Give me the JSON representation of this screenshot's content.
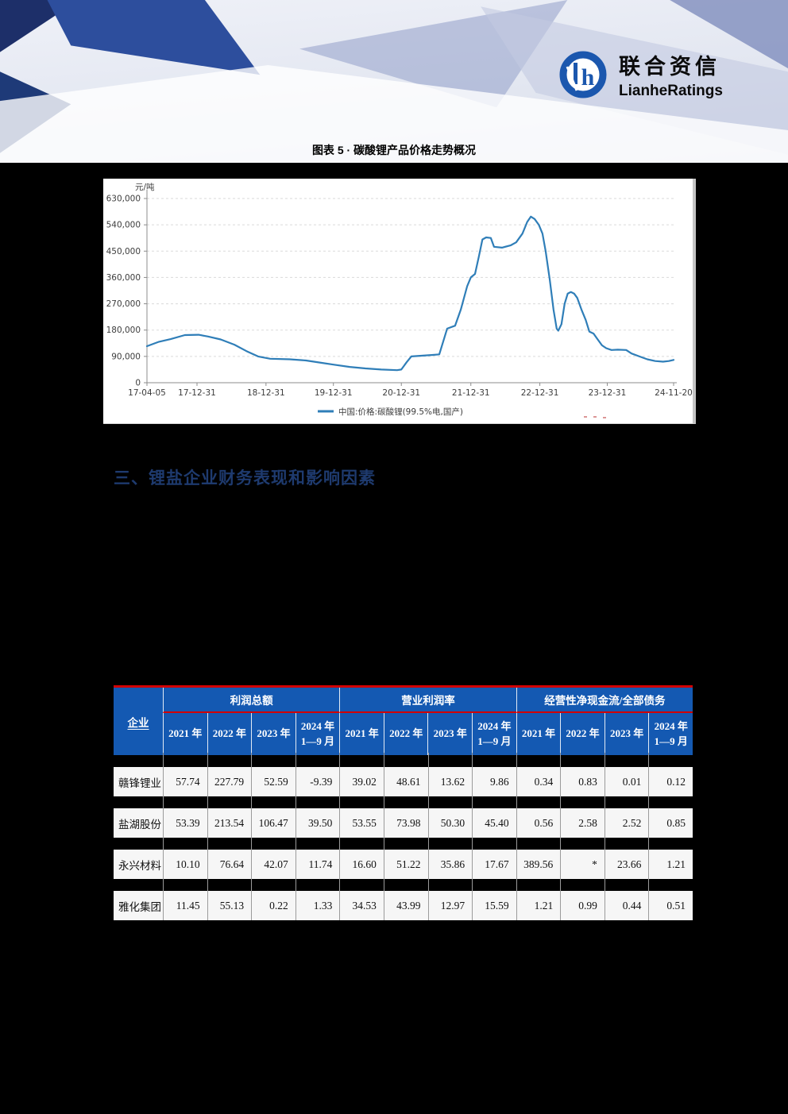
{
  "page": {
    "background": "#000000"
  },
  "header": {
    "logo_cn": "联合资信",
    "logo_en": "LianheRatings"
  },
  "figure": {
    "title": "图表 5 · 碳酸锂产品价格走势概况"
  },
  "section": {
    "heading": "三、锂盐企业财务表现和影响因素"
  },
  "chart_data": {
    "type": "line",
    "title": "图表 5 · 碳酸锂产品价格走势概况",
    "xlabel": "",
    "ylabel": "元/吨",
    "ylim": [
      0,
      630000
    ],
    "grid": "horizontal-dashed",
    "legend_position": "bottom-center",
    "yticks": [
      {
        "v": 630000,
        "label": "630,000"
      },
      {
        "v": 540000,
        "label": "540,000"
      },
      {
        "v": 450000,
        "label": "450,000"
      },
      {
        "v": 360000,
        "label": "360,000"
      },
      {
        "v": 270000,
        "label": "270,000"
      },
      {
        "v": 180000,
        "label": "180,000"
      },
      {
        "v": 90000,
        "label": "90,000"
      },
      {
        "v": 0,
        "label": "0"
      }
    ],
    "xticks": [
      {
        "label": "17-04-05",
        "pct": 0
      },
      {
        "label": "17-12-31",
        "pct": 9.5
      },
      {
        "label": "18-12-31",
        "pct": 22.6
      },
      {
        "label": "19-12-31",
        "pct": 35.4
      },
      {
        "label": "20-12-31",
        "pct": 48.3
      },
      {
        "label": "21-12-31",
        "pct": 61.5
      },
      {
        "label": "22-12-31",
        "pct": 74.6
      },
      {
        "label": "23-12-31",
        "pct": 87.4
      },
      {
        "label": "24-11-20",
        "pct": 100
      }
    ],
    "series": [
      {
        "name": "中国:价格:碳酸锂(99.5%电,国产)",
        "color": "#2f7eb8",
        "points": [
          [
            0,
            125000
          ],
          [
            2.3,
            140000
          ],
          [
            4.5,
            149000
          ],
          [
            7.2,
            163000
          ],
          [
            9.8,
            164000
          ],
          [
            11.6,
            158000
          ],
          [
            14,
            148000
          ],
          [
            16.6,
            130000
          ],
          [
            18.9,
            108000
          ],
          [
            21.1,
            90000
          ],
          [
            23.4,
            82000
          ],
          [
            27.1,
            80000
          ],
          [
            30.2,
            76000
          ],
          [
            33.2,
            68000
          ],
          [
            35.4,
            62000
          ],
          [
            38.5,
            54000
          ],
          [
            41.5,
            49000
          ],
          [
            44.5,
            45000
          ],
          [
            47.5,
            43000
          ],
          [
            48.3,
            45000
          ],
          [
            49.3,
            70000
          ],
          [
            50.2,
            90000
          ],
          [
            54.3,
            95000
          ],
          [
            55.5,
            97000
          ],
          [
            57,
            185000
          ],
          [
            58.5,
            195000
          ],
          [
            59.6,
            250000
          ],
          [
            60.8,
            330000
          ],
          [
            61.5,
            360000
          ],
          [
            62.3,
            372000
          ],
          [
            63,
            430000
          ],
          [
            63.7,
            490000
          ],
          [
            64.4,
            497000
          ],
          [
            65.3,
            495000
          ],
          [
            65.9,
            465000
          ],
          [
            67.4,
            462000
          ],
          [
            69.1,
            470000
          ],
          [
            70.1,
            480000
          ],
          [
            71.3,
            510000
          ],
          [
            72.2,
            550000
          ],
          [
            72.9,
            568000
          ],
          [
            73.6,
            560000
          ],
          [
            74.4,
            540000
          ],
          [
            75.1,
            510000
          ],
          [
            75.7,
            450000
          ],
          [
            76.5,
            350000
          ],
          [
            77.2,
            250000
          ],
          [
            77.8,
            185000
          ],
          [
            78.1,
            178000
          ],
          [
            78.7,
            200000
          ],
          [
            79.3,
            270000
          ],
          [
            79.9,
            305000
          ],
          [
            80.5,
            310000
          ],
          [
            81.1,
            305000
          ],
          [
            81.7,
            290000
          ],
          [
            82.5,
            250000
          ],
          [
            83.3,
            215000
          ],
          [
            84,
            175000
          ],
          [
            84.8,
            168000
          ],
          [
            85.5,
            150000
          ],
          [
            86.4,
            128000
          ],
          [
            87.2,
            118000
          ],
          [
            88.2,
            112000
          ],
          [
            89.4,
            113000
          ],
          [
            91,
            112000
          ],
          [
            92,
            100000
          ],
          [
            93.5,
            90000
          ],
          [
            95,
            80000
          ],
          [
            96.5,
            74000
          ],
          [
            98,
            72000
          ],
          [
            99.1,
            74000
          ],
          [
            100,
            78000
          ]
        ]
      }
    ]
  },
  "table": {
    "corner_header": "企业",
    "groups": [
      {
        "label": "利润总额"
      },
      {
        "label": "营业利润率"
      },
      {
        "label": "经营性净现金流/全部债务"
      }
    ],
    "sub_headers": [
      "2021 年",
      "2022 年",
      "2023 年",
      "2024 年\n1—9 月"
    ],
    "rows": [
      {
        "name": "赣锋锂业",
        "values": [
          "57.74",
          "227.79",
          "52.59",
          "-9.39",
          "39.02",
          "48.61",
          "13.62",
          "9.86",
          "0.34",
          "0.83",
          "0.01",
          "0.12"
        ]
      },
      {
        "name": "盐湖股份",
        "values": [
          "53.39",
          "213.54",
          "106.47",
          "39.50",
          "53.55",
          "73.98",
          "50.30",
          "45.40",
          "0.56",
          "2.58",
          "2.52",
          "0.85"
        ]
      },
      {
        "name": "永兴材料",
        "values": [
          "10.10",
          "76.64",
          "42.07",
          "11.74",
          "16.60",
          "51.22",
          "35.86",
          "17.67",
          "389.56",
          "*",
          "23.66",
          "1.21"
        ]
      },
      {
        "name": "雅化集团",
        "values": [
          "11.45",
          "55.13",
          "0.22",
          "1.33",
          "34.53",
          "43.99",
          "12.97",
          "15.59",
          "1.21",
          "0.99",
          "0.44",
          "0.51"
        ]
      }
    ],
    "style": {
      "header_bg": "#1459b2",
      "accent_red": "#d10000",
      "row_bg": "#f6f6f6",
      "heading_navy": "#1e3a6e"
    }
  }
}
